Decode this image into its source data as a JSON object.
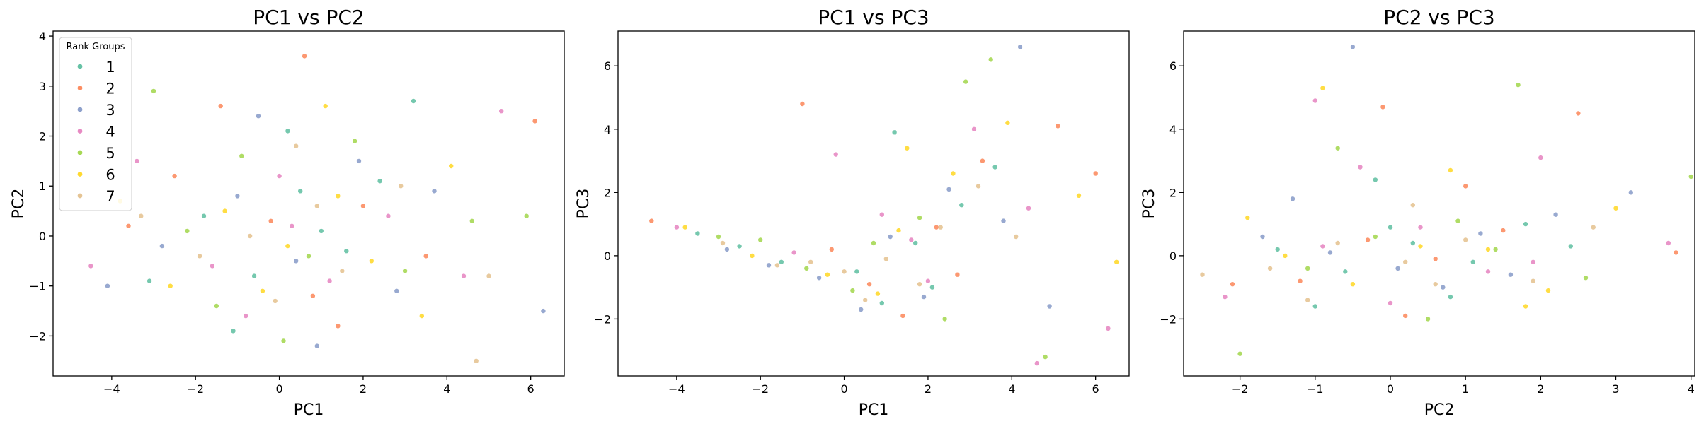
{
  "chart_data": [
    {
      "type": "scatter",
      "title": "PC1 vs PC2",
      "xlabel": "PC1",
      "ylabel": "PC2",
      "xlim": [
        -5.4,
        6.8
      ],
      "ylim": [
        -2.8,
        4.1
      ],
      "xticks": [
        -4,
        -2,
        0,
        2,
        4,
        6
      ],
      "yticks": [
        -2,
        -1,
        0,
        1,
        2,
        3,
        4
      ],
      "legend": {
        "title": "Rank Groups",
        "position": "top-left"
      },
      "grid": false,
      "series": [
        {
          "name": "1",
          "color": "#66c2a5",
          "points": [
            [
              -1.8,
              0.4
            ],
            [
              -0.6,
              -0.8
            ],
            [
              0.5,
              0.9
            ],
            [
              1.6,
              -0.3
            ],
            [
              2.4,
              1.1
            ],
            [
              -3.1,
              -0.9
            ],
            [
              3.2,
              2.7
            ],
            [
              -1.1,
              -1.9
            ],
            [
              0.2,
              2.1
            ],
            [
              1.0,
              0.1
            ]
          ]
        },
        {
          "name": "2",
          "color": "#fc8d62",
          "points": [
            [
              -2.5,
              1.2
            ],
            [
              -0.2,
              0.3
            ],
            [
              0.8,
              -1.2
            ],
            [
              2.0,
              0.6
            ],
            [
              3.5,
              -0.4
            ],
            [
              -1.4,
              2.6
            ],
            [
              6.1,
              2.3
            ],
            [
              0.6,
              3.6
            ],
            [
              -3.6,
              0.2
            ],
            [
              1.4,
              -1.8
            ]
          ]
        },
        {
          "name": "3",
          "color": "#8da0cb",
          "points": [
            [
              -1.0,
              0.8
            ],
            [
              0.4,
              -0.5
            ],
            [
              1.9,
              1.5
            ],
            [
              -2.8,
              -0.2
            ],
            [
              2.8,
              -1.1
            ],
            [
              -0.5,
              2.4
            ],
            [
              6.3,
              -1.5
            ],
            [
              0.9,
              -2.2
            ],
            [
              -4.1,
              -1.0
            ],
            [
              3.7,
              0.9
            ]
          ]
        },
        {
          "name": "4",
          "color": "#e78ac3",
          "points": [
            [
              -1.6,
              -0.6
            ],
            [
              0.0,
              1.2
            ],
            [
              1.2,
              -0.9
            ],
            [
              2.6,
              0.4
            ],
            [
              -3.4,
              1.5
            ],
            [
              -4.5,
              -0.6
            ],
            [
              5.3,
              2.5
            ],
            [
              -0.8,
              -1.6
            ],
            [
              4.4,
              -0.8
            ],
            [
              0.3,
              0.2
            ]
          ]
        },
        {
          "name": "5",
          "color": "#a6d854",
          "points": [
            [
              -2.2,
              0.1
            ],
            [
              -0.9,
              1.6
            ],
            [
              0.7,
              -0.4
            ],
            [
              1.8,
              1.9
            ],
            [
              3.0,
              -0.7
            ],
            [
              -3.0,
              2.9
            ],
            [
              4.6,
              0.3
            ],
            [
              -1.5,
              -1.4
            ],
            [
              5.9,
              0.4
            ],
            [
              0.1,
              -2.1
            ]
          ]
        },
        {
          "name": "6",
          "color": "#ffd92f",
          "points": [
            [
              -1.3,
              0.5
            ],
            [
              0.2,
              -0.2
            ],
            [
              1.4,
              0.8
            ],
            [
              -0.4,
              -1.1
            ],
            [
              2.2,
              -0.5
            ],
            [
              -2.6,
              -1.0
            ],
            [
              4.1,
              1.4
            ],
            [
              1.1,
              2.6
            ],
            [
              -3.8,
              0.7
            ],
            [
              3.4,
              -1.6
            ]
          ]
        },
        {
          "name": "7",
          "color": "#e5c494",
          "points": [
            [
              -0.7,
              0.0
            ],
            [
              0.9,
              0.6
            ],
            [
              -1.9,
              -0.4
            ],
            [
              1.5,
              -0.7
            ],
            [
              2.9,
              1.0
            ],
            [
              -3.3,
              0.4
            ],
            [
              4.7,
              -2.5
            ],
            [
              0.4,
              1.8
            ],
            [
              -0.1,
              -1.3
            ],
            [
              5.0,
              -0.8
            ]
          ]
        }
      ]
    },
    {
      "type": "scatter",
      "title": "PC1 vs PC3",
      "xlabel": "PC1",
      "ylabel": "PC3",
      "xlim": [
        -5.4,
        6.8
      ],
      "ylim": [
        -3.8,
        7.1
      ],
      "xticks": [
        -4,
        -2,
        0,
        2,
        4,
        6
      ],
      "yticks": [
        -2,
        0,
        2,
        4,
        6
      ],
      "grid": false,
      "series": [
        {
          "name": "1",
          "color": "#66c2a5",
          "points": [
            [
              -3.5,
              0.7
            ],
            [
              -1.5,
              -0.2
            ],
            [
              0.3,
              -0.5
            ],
            [
              1.7,
              0.4
            ],
            [
              2.8,
              1.6
            ],
            [
              0.9,
              -1.5
            ],
            [
              3.6,
              2.8
            ],
            [
              -2.5,
              0.3
            ],
            [
              1.2,
              3.9
            ],
            [
              2.1,
              -1.0
            ]
          ]
        },
        {
          "name": "2",
          "color": "#fc8d62",
          "points": [
            [
              -4.6,
              1.1
            ],
            [
              -1.0,
              4.8
            ],
            [
              0.6,
              -0.9
            ],
            [
              2.2,
              0.9
            ],
            [
              3.3,
              3.0
            ],
            [
              1.4,
              -1.9
            ],
            [
              5.1,
              4.1
            ],
            [
              -0.3,
              0.2
            ],
            [
              2.7,
              -0.6
            ],
            [
              6.0,
              2.6
            ]
          ]
        },
        {
          "name": "3",
          "color": "#8da0cb",
          "points": [
            [
              -2.8,
              0.2
            ],
            [
              -0.6,
              -0.7
            ],
            [
              1.1,
              0.6
            ],
            [
              2.5,
              2.1
            ],
            [
              4.2,
              6.6
            ],
            [
              0.4,
              -1.7
            ],
            [
              3.8,
              1.1
            ],
            [
              -1.8,
              -0.3
            ],
            [
              1.9,
              -1.3
            ],
            [
              4.9,
              -1.6
            ]
          ]
        },
        {
          "name": "4",
          "color": "#e78ac3",
          "points": [
            [
              -4.0,
              0.9
            ],
            [
              -1.2,
              0.1
            ],
            [
              0.9,
              1.3
            ],
            [
              2.0,
              -0.8
            ],
            [
              3.1,
              4.0
            ],
            [
              -0.2,
              3.2
            ],
            [
              6.3,
              -2.3
            ],
            [
              4.6,
              -3.4
            ],
            [
              1.6,
              0.5
            ],
            [
              4.4,
              1.5
            ]
          ]
        },
        {
          "name": "5",
          "color": "#a6d854",
          "points": [
            [
              -3.0,
              0.6
            ],
            [
              -0.9,
              -0.4
            ],
            [
              0.7,
              0.4
            ],
            [
              1.8,
              1.2
            ],
            [
              3.5,
              6.2
            ],
            [
              2.9,
              5.5
            ],
            [
              0.2,
              -1.1
            ],
            [
              4.8,
              -3.2
            ],
            [
              2.4,
              -2.0
            ],
            [
              -2.0,
              0.5
            ]
          ]
        },
        {
          "name": "6",
          "color": "#ffd92f",
          "points": [
            [
              -2.2,
              0.0
            ],
            [
              -0.4,
              -0.6
            ],
            [
              1.3,
              0.8
            ],
            [
              2.6,
              2.6
            ],
            [
              3.9,
              4.2
            ],
            [
              5.6,
              1.9
            ],
            [
              6.5,
              -0.2
            ],
            [
              0.8,
              -1.2
            ],
            [
              1.5,
              3.4
            ],
            [
              -3.8,
              0.9
            ]
          ]
        },
        {
          "name": "7",
          "color": "#e5c494",
          "points": [
            [
              -1.6,
              -0.3
            ],
            [
              0.0,
              -0.5
            ],
            [
              1.0,
              -0.1
            ],
            [
              2.3,
              0.9
            ],
            [
              3.2,
              2.2
            ],
            [
              -2.9,
              0.4
            ],
            [
              4.1,
              0.6
            ],
            [
              0.5,
              -1.4
            ],
            [
              1.8,
              -0.9
            ],
            [
              -0.8,
              -0.2
            ]
          ]
        }
      ]
    },
    {
      "type": "scatter",
      "title": "PC2 vs PC3",
      "xlabel": "PC2",
      "ylabel": "PC3",
      "xlim": [
        -2.75,
        4.05
      ],
      "ylim": [
        -3.8,
        7.1
      ],
      "xticks": [
        -2,
        -1,
        0,
        1,
        2,
        3,
        4
      ],
      "yticks": [
        -2,
        0,
        2,
        4,
        6
      ],
      "grid": false,
      "series": [
        {
          "name": "1",
          "color": "#66c2a5",
          "points": [
            [
              -1.5,
              0.2
            ],
            [
              -0.6,
              -0.5
            ],
            [
              0.3,
              0.4
            ],
            [
              1.1,
              -0.2
            ],
            [
              1.8,
              1.0
            ],
            [
              -0.2,
              2.4
            ],
            [
              0.8,
              -1.3
            ],
            [
              -1.0,
              -1.6
            ],
            [
              2.4,
              0.3
            ],
            [
              0.0,
              0.9
            ]
          ]
        },
        {
          "name": "2",
          "color": "#fc8d62",
          "points": [
            [
              -1.2,
              -0.8
            ],
            [
              -0.3,
              0.5
            ],
            [
              0.6,
              -0.1
            ],
            [
              1.5,
              0.8
            ],
            [
              2.5,
              4.5
            ],
            [
              -0.1,
              4.7
            ],
            [
              3.8,
              0.1
            ],
            [
              0.2,
              -1.9
            ],
            [
              -2.1,
              -0.9
            ],
            [
              1.0,
              2.2
            ]
          ]
        },
        {
          "name": "3",
          "color": "#8da0cb",
          "points": [
            [
              -1.7,
              0.6
            ],
            [
              -0.8,
              0.1
            ],
            [
              0.1,
              -0.4
            ],
            [
              1.2,
              0.7
            ],
            [
              2.2,
              1.3
            ],
            [
              -0.5,
              6.6
            ],
            [
              3.2,
              2.0
            ],
            [
              0.7,
              -1.0
            ],
            [
              -1.3,
              1.8
            ],
            [
              1.6,
              -0.6
            ]
          ]
        },
        {
          "name": "4",
          "color": "#e78ac3",
          "points": [
            [
              -2.2,
              -1.3
            ],
            [
              -0.9,
              0.3
            ],
            [
              0.4,
              0.9
            ],
            [
              1.3,
              -0.5
            ],
            [
              2.0,
              3.1
            ],
            [
              -1.0,
              4.9
            ],
            [
              3.7,
              0.4
            ],
            [
              0.0,
              -1.5
            ],
            [
              1.9,
              -0.2
            ],
            [
              -0.4,
              2.8
            ]
          ]
        },
        {
          "name": "5",
          "color": "#a6d854",
          "points": [
            [
              -2.0,
              -3.1
            ],
            [
              -1.1,
              -0.4
            ],
            [
              -0.2,
              0.6
            ],
            [
              0.9,
              1.1
            ],
            [
              1.7,
              5.4
            ],
            [
              4.0,
              2.5
            ],
            [
              2.6,
              -0.7
            ],
            [
              -0.7,
              3.4
            ],
            [
              0.5,
              -2.0
            ],
            [
              1.4,
              0.2
            ]
          ]
        },
        {
          "name": "6",
          "color": "#ffd92f",
          "points": [
            [
              -1.4,
              0.0
            ],
            [
              -0.5,
              -0.9
            ],
            [
              0.4,
              0.3
            ],
            [
              1.3,
              0.2
            ],
            [
              2.1,
              -1.1
            ],
            [
              -0.9,
              5.3
            ],
            [
              3.0,
              1.5
            ],
            [
              0.8,
              2.7
            ],
            [
              -1.9,
              1.2
            ],
            [
              1.8,
              -1.6
            ]
          ]
        },
        {
          "name": "7",
          "color": "#e5c494",
          "points": [
            [
              -1.6,
              -0.4
            ],
            [
              -0.7,
              0.4
            ],
            [
              0.2,
              -0.2
            ],
            [
              1.0,
              0.5
            ],
            [
              1.9,
              -0.8
            ],
            [
              -2.5,
              -0.6
            ],
            [
              2.7,
              0.9
            ],
            [
              0.3,
              1.6
            ],
            [
              -1.1,
              -1.4
            ],
            [
              0.6,
              -0.9
            ]
          ]
        }
      ]
    }
  ]
}
